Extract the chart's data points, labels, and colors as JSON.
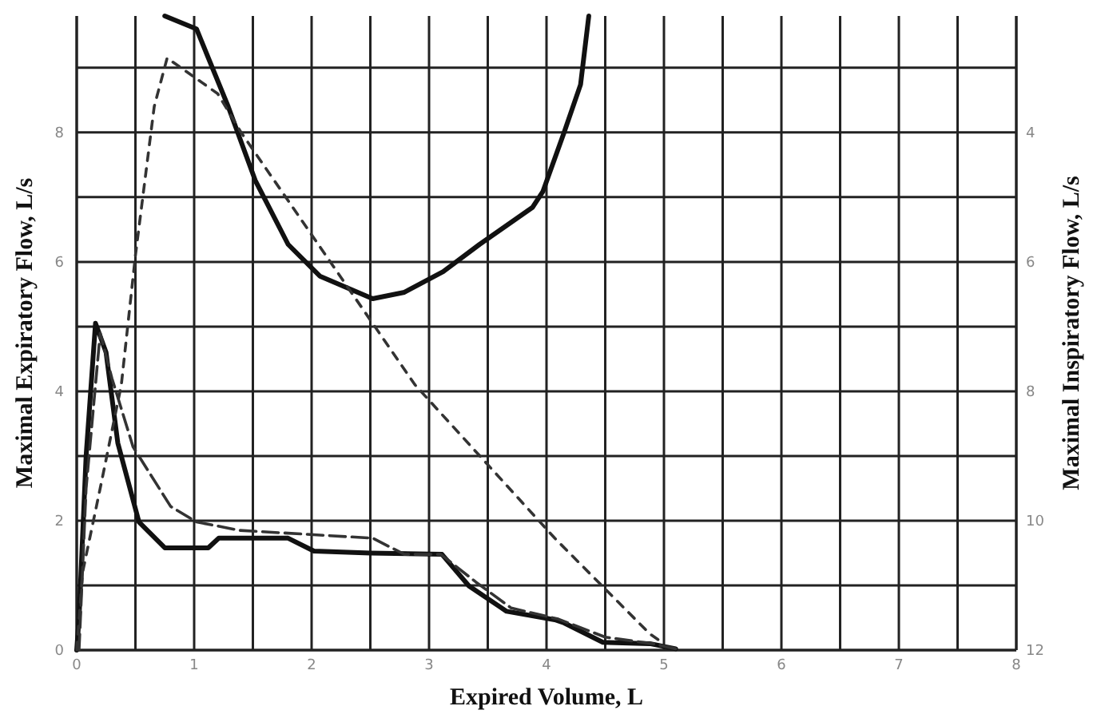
{
  "chart_data": {
    "type": "line",
    "xlabel": "Expired Volume, L",
    "ylabel": "Maximal Expiratory Flow, L/s",
    "y2label": "Maximal Inspiratory Flow, L/s",
    "grid": true,
    "marker": "none",
    "xlim": [
      0,
      8
    ],
    "xticks": [
      0,
      {
        "value": 0.5,
        "label": null
      },
      1,
      {
        "value": 1.5,
        "label": null
      },
      2,
      {
        "value": 2.5,
        "label": null
      },
      3,
      {
        "value": 3.5,
        "label": null
      },
      4,
      {
        "value": 4.5,
        "label": null
      },
      5,
      {
        "value": 5.5,
        "label": null
      },
      6,
      {
        "value": 6.5,
        "label": null
      },
      7,
      {
        "value": 7.5,
        "label": null
      },
      8
    ],
    "ylim": [
      0,
      9.8
    ],
    "yticks": [
      0,
      {
        "value": 1,
        "label": null
      },
      2,
      {
        "value": 3,
        "label": null
      },
      4,
      {
        "value": 5,
        "label": null
      },
      6,
      {
        "value": 7,
        "label": null
      },
      8,
      {
        "value": 9,
        "label": null
      }
    ],
    "y2lim": [
      12,
      2.2
    ],
    "y2ticks": [
      12,
      10,
      8,
      6,
      4
    ],
    "series": [
      {
        "color": "#111111",
        "line_style": "solid",
        "axis": "y2",
        "x": [
          0.75,
          1.02,
          1.29,
          1.52,
          1.8,
          2.07,
          2.52,
          2.79,
          3.12,
          3.43,
          3.88,
          3.97,
          4.15,
          4.29,
          4.36
        ],
        "values": [
          2.2,
          2.4,
          3.6,
          4.74,
          5.73,
          6.22,
          6.57,
          6.47,
          6.15,
          5.73,
          5.16,
          4.91,
          4.0,
          3.26,
          2.2
        ]
      },
      {
        "color": "#111111",
        "line_style": "solid",
        "x": [
          0,
          0.02,
          0.08,
          0.16,
          0.25,
          0.35,
          0.53,
          0.75,
          1.12,
          1.21,
          1.8,
          2.02,
          2.5,
          3.11,
          3.34,
          3.66,
          4.07,
          4.15,
          4.48,
          4.88,
          5.1
        ],
        "values": [
          0,
          0.5,
          3.0,
          5.05,
          4.6,
          3.2,
          1.98,
          1.58,
          1.58,
          1.73,
          1.73,
          1.53,
          1.5,
          1.48,
          0.99,
          0.6,
          0.47,
          0.42,
          0.12,
          0.1,
          0.02
        ]
      },
      {
        "color": "#333333",
        "line_style": "dashed",
        "x": [
          0.02,
          0.08,
          0.2,
          0.3,
          0.48,
          0.8,
          1.02,
          1.39,
          2.52,
          2.79,
          3.1,
          3.4,
          3.7,
          4.1,
          4.5,
          4.9,
          5.1
        ],
        "values": [
          0,
          2.5,
          4.9,
          4.2,
          3.14,
          2.22,
          1.98,
          1.85,
          1.73,
          1.48,
          1.48,
          1.05,
          0.65,
          0.48,
          0.2,
          0.1,
          0.02
        ]
      },
      {
        "color": "#333333",
        "line_style": "dotted",
        "x": [
          0,
          0.05,
          0.2,
          0.38,
          0.5,
          0.66,
          0.77,
          1.2,
          1.4,
          2.88,
          4.07,
          4.88,
          5.0
        ],
        "values": [
          0,
          1.2,
          2.5,
          4.1,
          6.1,
          8.4,
          9.15,
          8.6,
          8.0,
          4.1,
          1.73,
          0.25,
          0.1
        ]
      }
    ]
  }
}
